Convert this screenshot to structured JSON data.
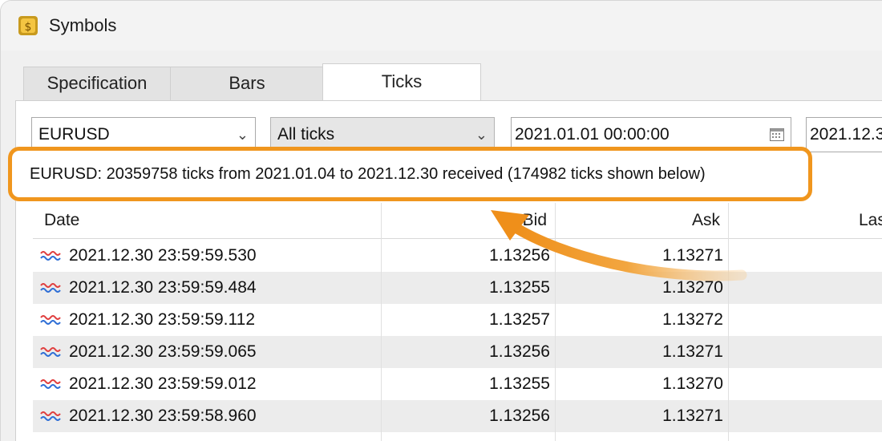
{
  "window": {
    "title": "Symbols"
  },
  "tabs": [
    {
      "label": "Specification",
      "active": false
    },
    {
      "label": "Bars",
      "active": false
    },
    {
      "label": "Ticks",
      "active": true
    }
  ],
  "filters": {
    "symbol": "EURUSD",
    "tick_type": "All ticks",
    "date_from": "2021.01.01 00:00:00",
    "date_to": "2021.12.3"
  },
  "status": "EURUSD: 20359758 ticks from 2021.01.04 to 2021.12.30 received (174982 ticks shown below)",
  "table": {
    "headers": {
      "date": "Date",
      "bid": "Bid",
      "ask": "Ask",
      "last": "Las"
    },
    "rows": [
      {
        "date": "2021.12.30 23:59:59.530",
        "bid": "1.13256",
        "ask": "1.13271"
      },
      {
        "date": "2021.12.30 23:59:59.484",
        "bid": "1.13255",
        "ask": "1.13270"
      },
      {
        "date": "2021.12.30 23:59:59.112",
        "bid": "1.13257",
        "ask": "1.13272"
      },
      {
        "date": "2021.12.30 23:59:59.065",
        "bid": "1.13256",
        "ask": "1.13271"
      },
      {
        "date": "2021.12.30 23:59:59.012",
        "bid": "1.13255",
        "ask": "1.13270"
      },
      {
        "date": "2021.12.30 23:59:58.960",
        "bid": "1.13256",
        "ask": "1.13271"
      }
    ]
  },
  "colors": {
    "accent": "#f0961e",
    "row_alt": "#ececec",
    "tick_red": "#e04040",
    "tick_blue": "#2f6fd6"
  },
  "icons": {
    "app": "dollar-coin-icon",
    "tick": "tick-wave-icon",
    "calendar": "calendar-icon",
    "dropdown": "chevron-down-icon"
  }
}
